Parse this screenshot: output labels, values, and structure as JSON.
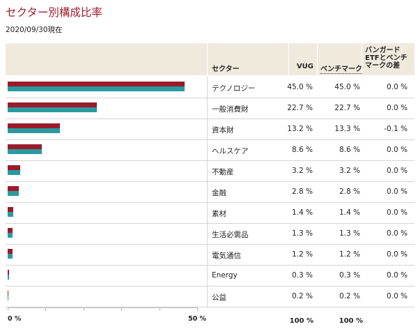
{
  "title": "セクター別構成比率",
  "as_of": "2020/09/30現在",
  "columns": {
    "sector": "セクター",
    "vug": "VUG",
    "benchmark": "ベンチマーク",
    "diff": "バンガードETFとベンチマークの差"
  },
  "colors": {
    "vug": "#9b1b2a",
    "benchmark": "#2a9aa0",
    "title": "#a01c2d",
    "header_bg": "#efeadc"
  },
  "chart_data": {
    "type": "bar",
    "orientation": "horizontal",
    "xlim": [
      0,
      50
    ],
    "tick_labels": [
      "0 %",
      "50 %"
    ],
    "categories": [
      "テクノロジー",
      "一般消費財",
      "資本財",
      "ヘルスケア",
      "不動産",
      "金融",
      "素材",
      "生活必需品",
      "電気通信",
      "Energy",
      "公益"
    ],
    "series": [
      {
        "name": "VUG",
        "values": [
          45.0,
          22.7,
          13.2,
          8.6,
          3.2,
          2.8,
          1.4,
          1.3,
          1.2,
          0.3,
          0.2
        ]
      },
      {
        "name": "ベンチマーク",
        "values": [
          45.0,
          22.7,
          13.3,
          8.6,
          3.2,
          2.8,
          1.4,
          1.3,
          1.2,
          0.3,
          0.2
        ]
      }
    ],
    "diff": [
      0.0,
      0.0,
      -0.1,
      0.0,
      0.0,
      0.0,
      0.0,
      0.0,
      0.0,
      0.0,
      0.0
    ],
    "vug_labels": [
      "45.0 %",
      "22.7 %",
      "13.2 %",
      "8.6 %",
      "3.2 %",
      "2.8 %",
      "1.4 %",
      "1.3 %",
      "1.2 %",
      "0.3 %",
      "0.2 %"
    ],
    "benchmark_labels": [
      "45.0 %",
      "22.7 %",
      "13.3 %",
      "8.6 %",
      "3.2 %",
      "2.8 %",
      "1.4 %",
      "1.3 %",
      "1.2 %",
      "0.3 %",
      "0.2 %"
    ],
    "diff_labels": [
      "0.0 %",
      "0.0 %",
      "-0.1 %",
      "0.0 %",
      "0.0 %",
      "0.0 %",
      "0.0 %",
      "0.0 %",
      "0.0 %",
      "0.0 %",
      "0.0 %"
    ],
    "totals": {
      "vug": "100 %",
      "benchmark": "100 %"
    }
  }
}
